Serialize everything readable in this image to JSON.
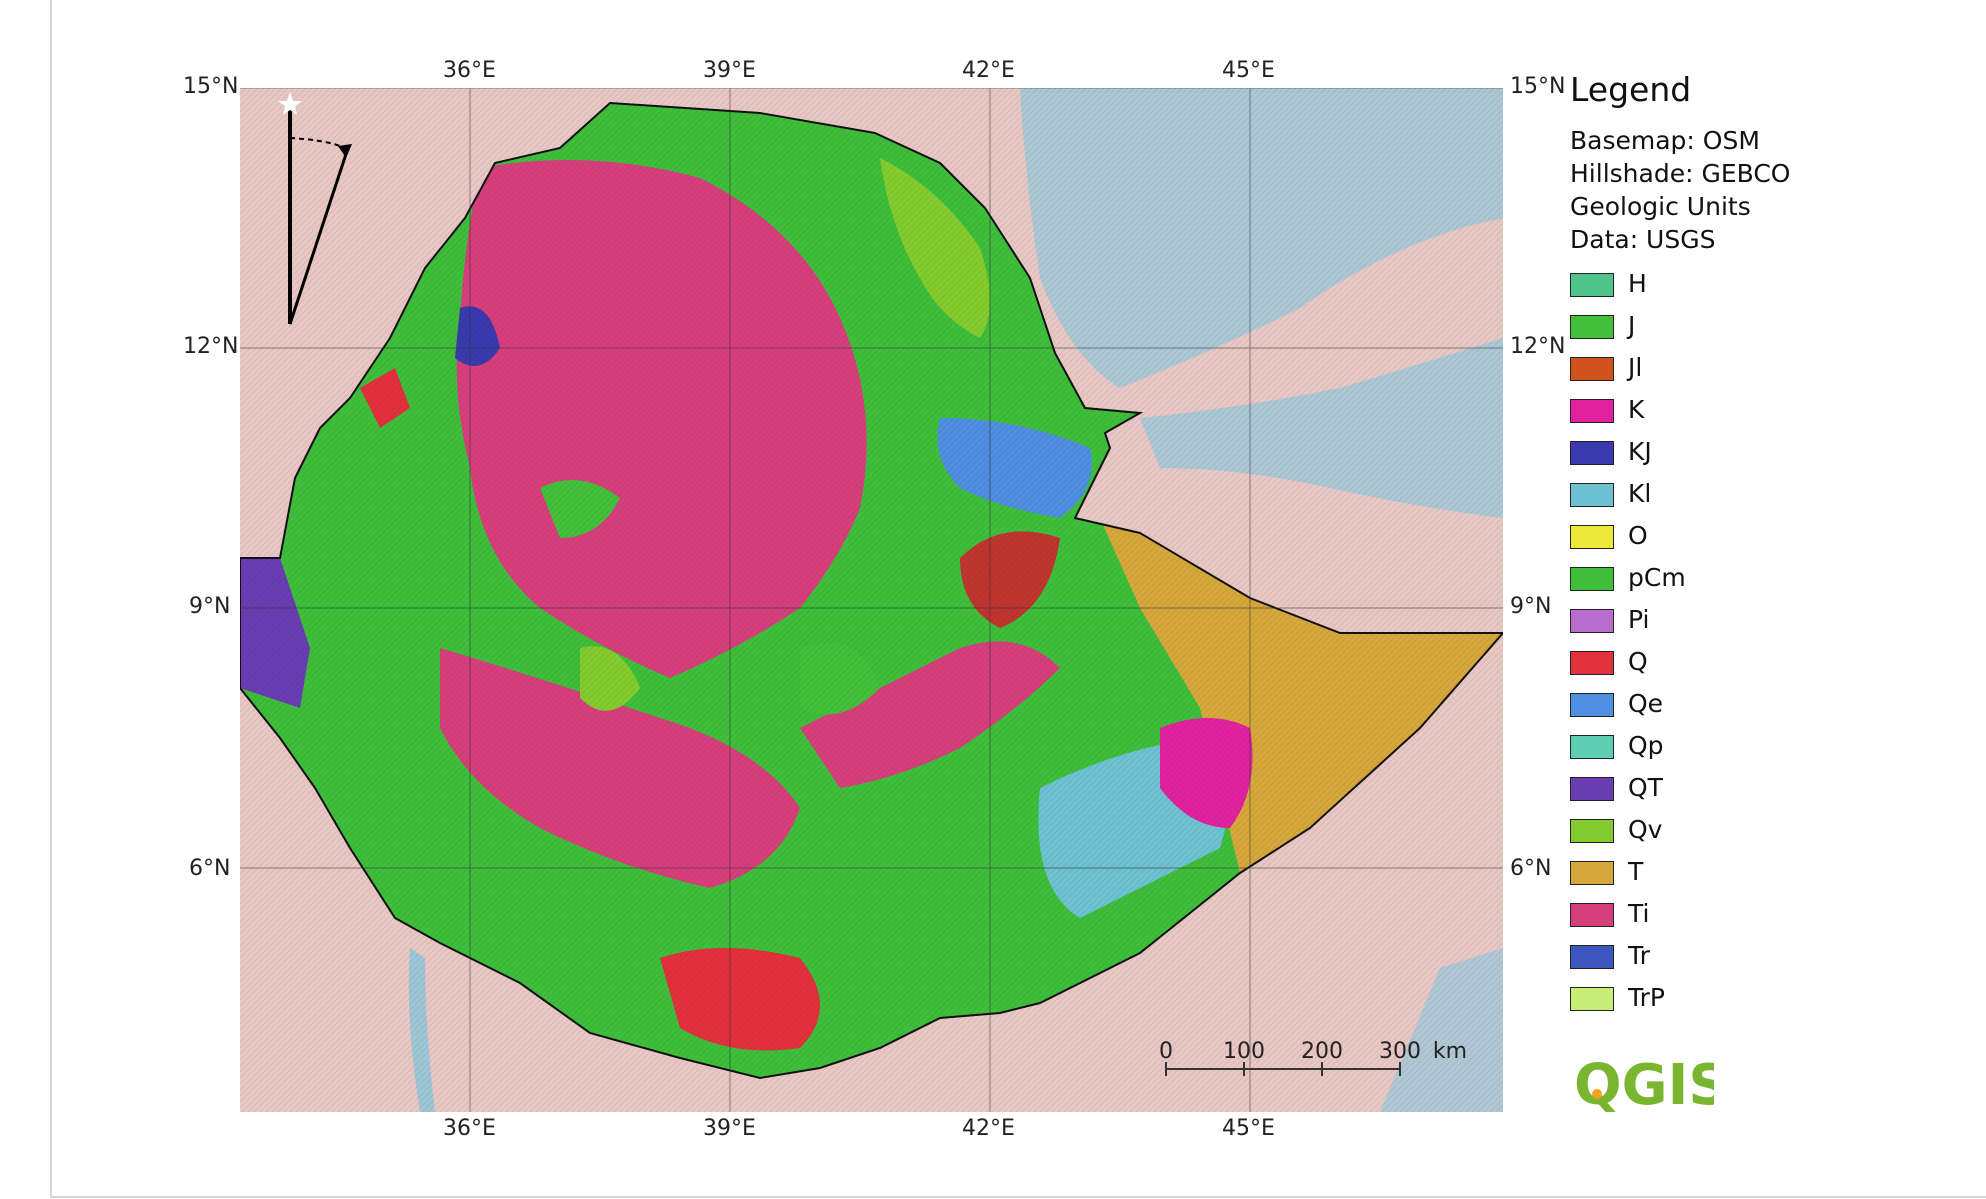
{
  "map": {
    "lat_labels": [
      "15°N",
      "12°N",
      "9°N",
      "6°N"
    ],
    "lon_labels": [
      "36°E",
      "39°E",
      "42°E",
      "45°E"
    ],
    "colors": {
      "sea": "#a9c8d6",
      "land_base": "#e8c7c4",
      "border": "#111111"
    }
  },
  "legend": {
    "title": "Legend",
    "meta": [
      "Basemap: OSM",
      "Hillshade: GEBCO",
      "Geologic Units",
      "Data: USGS"
    ],
    "items": [
      {
        "label": "H",
        "color": "#4fc48a"
      },
      {
        "label": "J",
        "color": "#44c13b"
      },
      {
        "label": "Jl",
        "color": "#d2521d"
      },
      {
        "label": "K",
        "color": "#e0229e"
      },
      {
        "label": "KJ",
        "color": "#3a3aae"
      },
      {
        "label": "Kl",
        "color": "#6ec2d1"
      },
      {
        "label": "O",
        "color": "#ede93a"
      },
      {
        "label": "pCm",
        "color": "#3fbe3b"
      },
      {
        "label": "Pi",
        "color": "#b86ccf"
      },
      {
        "label": "Q",
        "color": "#e2313d"
      },
      {
        "label": "Qe",
        "color": "#4f8ee0"
      },
      {
        "label": "Qp",
        "color": "#5ecfb3"
      },
      {
        "label": "QT",
        "color": "#6a3db2"
      },
      {
        "label": "Qv",
        "color": "#84cc2e"
      },
      {
        "label": "T",
        "color": "#d6a73a"
      },
      {
        "label": "Ti",
        "color": "#d63f7c"
      },
      {
        "label": "Tr",
        "color": "#3d57bf"
      },
      {
        "label": "TrP",
        "color": "#c9ec78"
      }
    ]
  },
  "scale": {
    "ticks": [
      "0",
      "100",
      "200",
      "300"
    ],
    "unit": "km"
  },
  "logo": {
    "text": "QGIS",
    "color": "#7ab52f",
    "dot_color": "#f0a31c"
  }
}
